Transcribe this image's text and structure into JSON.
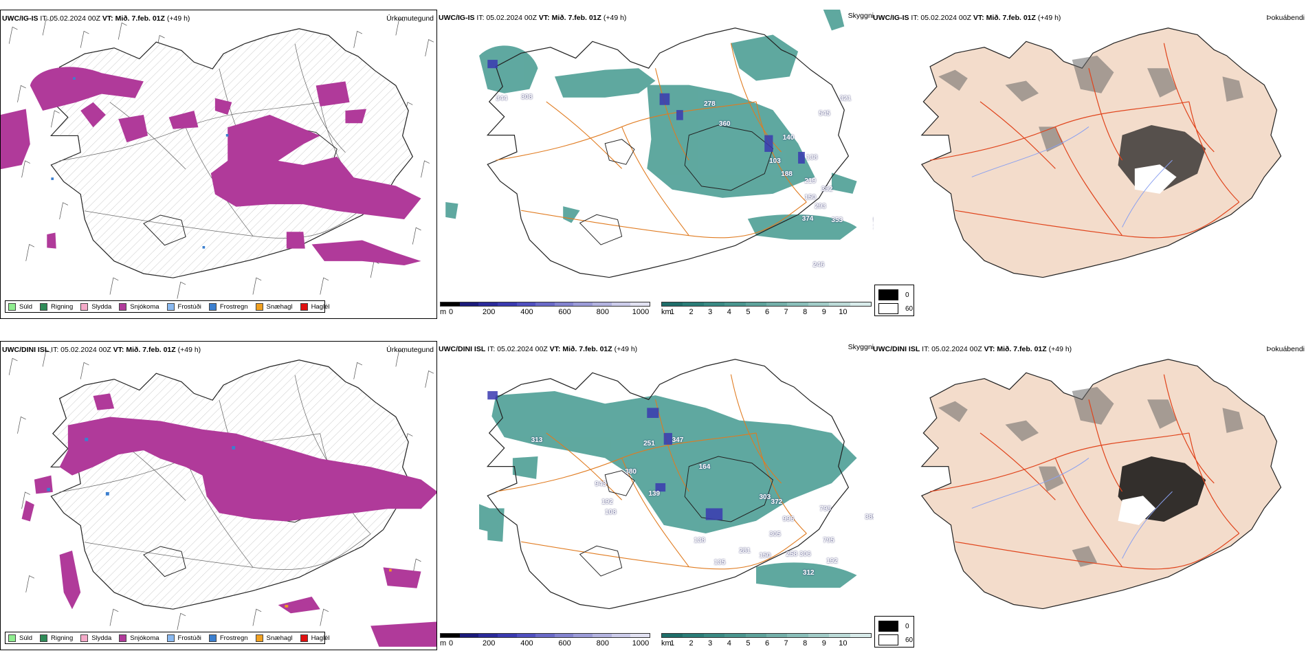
{
  "rows": [
    {
      "model": "UWC/IG-IS",
      "it_text": "IT: 05.02.2024 00Z",
      "vt_label": "VT: Mið. 7.feb. 01Z",
      "lead": "(+49 h)"
    },
    {
      "model": "UWC/DINI ISL",
      "it_text": "IT: 05.02.2024 00Z",
      "vt_label": "VT: Mið. 7.feb. 01Z",
      "lead": "(+49 h)"
    }
  ],
  "panel_titles": {
    "precip_type": "Úrkomutegund",
    "visibility": "Skyggni",
    "fog_index": "Þokuábendi"
  },
  "precip_legend": [
    {
      "label": "Súld",
      "color": "#90ee90"
    },
    {
      "label": "Rigning",
      "color": "#2e8b57"
    },
    {
      "label": "Slydda",
      "color": "#f4a9c8"
    },
    {
      "label": "Snjókoma",
      "color": "#b03a9a"
    },
    {
      "label": "Frostúði",
      "color": "#8ab9f0"
    },
    {
      "label": "Frostregn",
      "color": "#3b7fcf"
    },
    {
      "label": "Snæhagl",
      "color": "#f0a020"
    },
    {
      "label": "Haglél",
      "color": "#e01010"
    }
  ],
  "ceiling_scale": {
    "unit": "m",
    "ticks": [
      "0",
      "200",
      "400",
      "600",
      "800",
      "1000"
    ],
    "colors": [
      "#000000",
      "#1a1a7a",
      "#2a2a9a",
      "#3a3ab0",
      "#5050c0",
      "#6a6ac8",
      "#8484d0",
      "#9c9cd8",
      "#b4b4e0",
      "#ccccea",
      "#e2e2f2"
    ]
  },
  "visibility_scale": {
    "unit": "km",
    "ticks": [
      "1",
      "2",
      "3",
      "4",
      "5",
      "6",
      "7",
      "8",
      "9",
      "10"
    ],
    "colors": [
      "#1f6e6a",
      "#2a7d78",
      "#3a8a84",
      "#4a968f",
      "#5ea39c",
      "#74b0aa",
      "#8abfba",
      "#a2ccc8",
      "#bcdbd8",
      "#d8ebea"
    ]
  },
  "fog_scale": {
    "labels": [
      "0",
      "60"
    ]
  },
  "top_ceiling_values": [
    "344",
    "308",
    "278",
    "360",
    "140",
    "103",
    "188",
    "138",
    "545",
    "321",
    "219",
    "392",
    "150",
    "293",
    "374",
    "353",
    "987",
    "116",
    "877",
    "297",
    "246"
  ],
  "bottom_ceiling_values": [
    "313",
    "251",
    "347",
    "164",
    "380",
    "943",
    "139",
    "192",
    "108",
    "303",
    "372",
    "996",
    "798",
    "305",
    "281",
    "150",
    "258",
    "306",
    "795",
    "192",
    "312",
    "389",
    "848",
    "138",
    "135"
  ]
}
